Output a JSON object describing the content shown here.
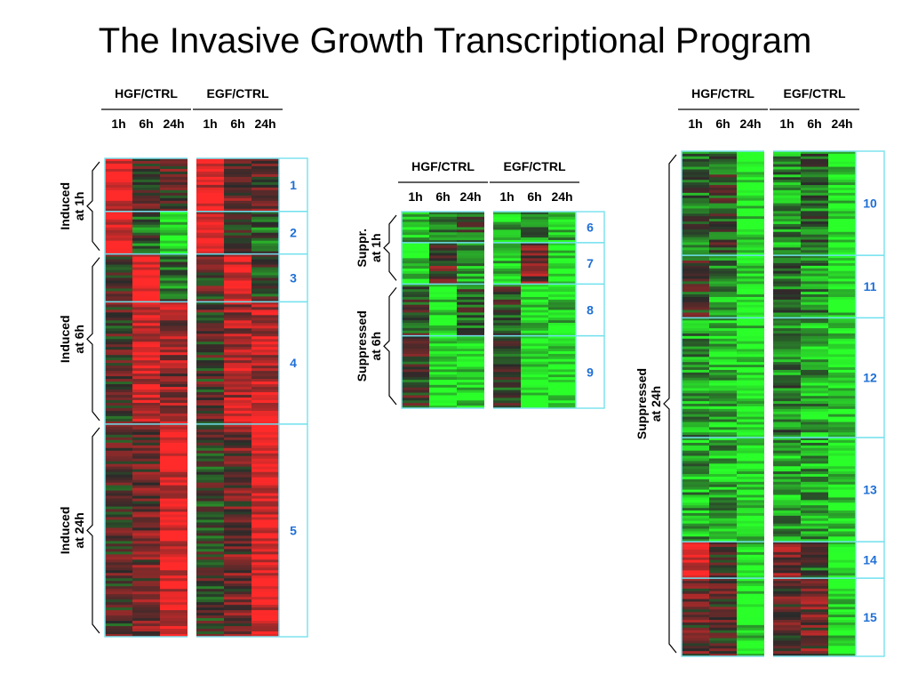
{
  "title": "The Invasive Growth Transcriptional Program",
  "chart_data": {
    "type": "heatmap",
    "color_scale": {
      "up": "#ff2a2a",
      "zero": "#2a2a2a",
      "down": "#2aff2a"
    },
    "condition_groups": [
      "HGF/CTRL",
      "EGF/CTRL"
    ],
    "timepoints": [
      "1h",
      "6h",
      "24h"
    ],
    "panels": [
      {
        "clusters": [
          {
            "id": "1",
            "rows": 20,
            "hgf": [
              0.9,
              0.1,
              0.2
            ],
            "egf": [
              0.9,
              0.2,
              0.2
            ]
          },
          {
            "id": "2",
            "rows": 16,
            "hgf": [
              0.9,
              -0.2,
              -0.9
            ],
            "egf": [
              0.9,
              0.1,
              -0.3
            ]
          },
          {
            "id": "3",
            "rows": 18,
            "hgf": [
              0.0,
              1.0,
              -0.3
            ],
            "egf": [
              0.1,
              0.9,
              -0.1
            ]
          },
          {
            "id": "4",
            "rows": 46,
            "hgf": [
              0.1,
              0.8,
              0.5
            ],
            "egf": [
              0.1,
              0.6,
              0.7
            ]
          },
          {
            "id": "5",
            "rows": 80,
            "hgf": [
              0.1,
              0.3,
              0.9
            ],
            "egf": [
              0.0,
              0.3,
              0.9
            ]
          }
        ],
        "brackets": [
          {
            "label": [
              "Induced",
              "at 1h"
            ],
            "clusters": [
              "1",
              "2"
            ]
          },
          {
            "label": [
              "Induced",
              "at 6h"
            ],
            "clusters": [
              "3",
              "4"
            ]
          },
          {
            "label": [
              "Induced",
              "at 24h"
            ],
            "clusters": [
              "5"
            ]
          }
        ]
      },
      {
        "clusters": [
          {
            "id": "6",
            "rows": 12,
            "hgf": [
              -0.7,
              -0.5,
              -0.2
            ],
            "egf": [
              -0.6,
              -0.5,
              -0.7
            ]
          },
          {
            "id": "7",
            "rows": 16,
            "hgf": [
              -0.8,
              0.2,
              -0.6
            ],
            "egf": [
              -0.8,
              0.4,
              -0.9
            ]
          },
          {
            "id": "8",
            "rows": 20,
            "hgf": [
              -0.1,
              -0.9,
              -0.2
            ],
            "egf": [
              -0.1,
              -0.9,
              -0.8
            ]
          },
          {
            "id": "9",
            "rows": 28,
            "hgf": [
              0.0,
              -0.9,
              -0.9
            ],
            "egf": [
              0.0,
              -1.0,
              -0.9
            ]
          }
        ],
        "brackets": [
          {
            "label": [
              "Suppr.",
              "at 1h"
            ],
            "clusters": [
              "6",
              "7"
            ]
          },
          {
            "label": [
              "Suppressed",
              "at 6h"
            ],
            "clusters": [
              "8",
              "9"
            ]
          }
        ]
      },
      {
        "clusters": [
          {
            "id": "10",
            "rows": 40,
            "hgf": [
              -0.3,
              -0.1,
              -0.9
            ],
            "egf": [
              -0.5,
              -0.3,
              -0.9
            ]
          },
          {
            "id": "11",
            "rows": 24,
            "hgf": [
              0.0,
              -0.5,
              -0.9
            ],
            "egf": [
              -0.3,
              -0.5,
              -0.9
            ]
          },
          {
            "id": "12",
            "rows": 46,
            "hgf": [
              -0.5,
              -0.7,
              -0.9
            ],
            "egf": [
              -0.4,
              -0.6,
              -0.9
            ]
          },
          {
            "id": "13",
            "rows": 40,
            "hgf": [
              -0.6,
              -0.6,
              -0.9
            ],
            "egf": [
              -0.6,
              -0.6,
              -0.9
            ]
          },
          {
            "id": "14",
            "rows": 14,
            "hgf": [
              0.7,
              0.1,
              -0.9
            ],
            "egf": [
              0.4,
              -0.2,
              -0.9
            ]
          },
          {
            "id": "15",
            "rows": 30,
            "hgf": [
              0.2,
              0.1,
              -0.9
            ],
            "egf": [
              0.2,
              0.3,
              -0.9
            ]
          }
        ],
        "brackets": [
          {
            "label": [
              "Suppressed",
              "at 24h"
            ],
            "clusters": [
              "10",
              "11",
              "12",
              "13",
              "14",
              "15"
            ]
          }
        ]
      }
    ]
  }
}
